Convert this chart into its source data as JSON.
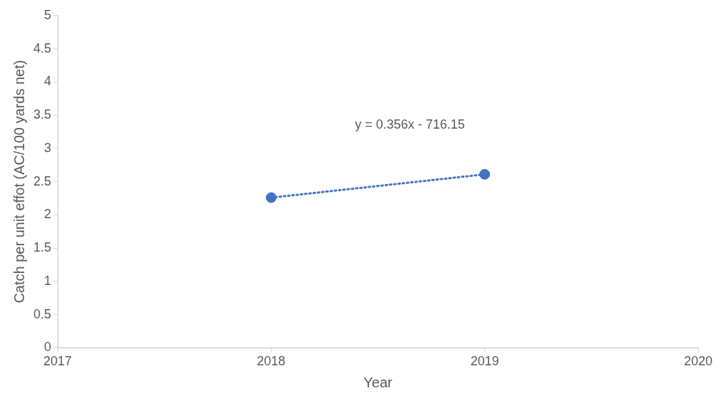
{
  "chart_data": {
    "type": "scatter",
    "xlabel": "Year",
    "ylabel": "Catch per unit effot (AC/100 yards net)",
    "xlim": [
      2017,
      2020
    ],
    "xticks": [
      2017,
      2018,
      2019,
      2020
    ],
    "ylim": [
      0,
      5
    ],
    "yticks": [
      0,
      0.5,
      1,
      1.5,
      2,
      2.5,
      3,
      3.5,
      4,
      4.5,
      5
    ],
    "grid": false,
    "legend": false,
    "x": [
      2018,
      2019
    ],
    "series": [
      {
        "type": "scatter",
        "color": "#4472c4",
        "marker": "circle",
        "values": [
          2.26,
          2.61
        ]
      },
      {
        "type": "line",
        "color": "#4472c4",
        "marker": "none",
        "line_style": "dotted",
        "values": [
          2.26,
          2.61
        ]
      }
    ],
    "annotations": [
      "y = 0.356x - 716.15"
    ]
  }
}
